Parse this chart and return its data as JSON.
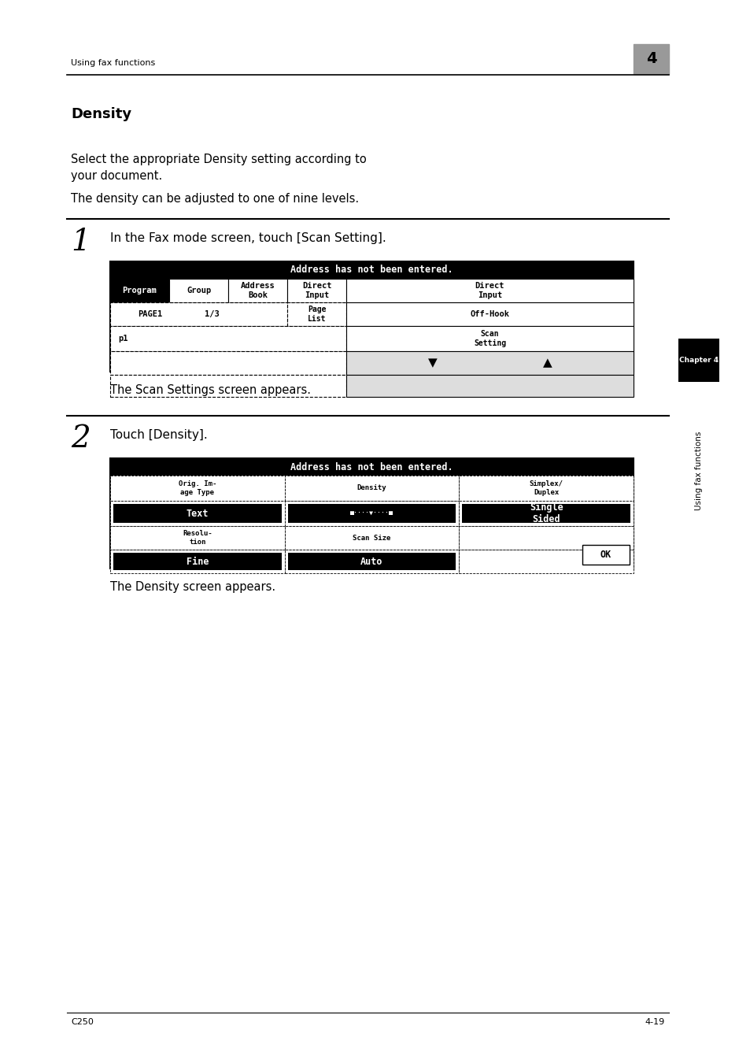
{
  "bg_color": "#ffffff",
  "page_width": 9.54,
  "page_height": 13.5,
  "header_text": "Using fax functions",
  "chapter_num": "4",
  "section_title": "Density",
  "para1": "Select the appropriate Density setting according to\nyour document.",
  "para2": "The density can be adjusted to one of nine levels.",
  "step1_num": "1",
  "step1_text": "In the Fax mode screen, touch [Scan Setting].",
  "step1_caption": "The Scan Settings screen appears.",
  "step2_num": "2",
  "step2_text": "Touch [Density].",
  "step2_caption": "The Density screen appears.",
  "footer_left": "C250",
  "footer_right": "4-19",
  "sidebar_text": "Using fax functions",
  "sidebar_chapter": "Chapter 4"
}
